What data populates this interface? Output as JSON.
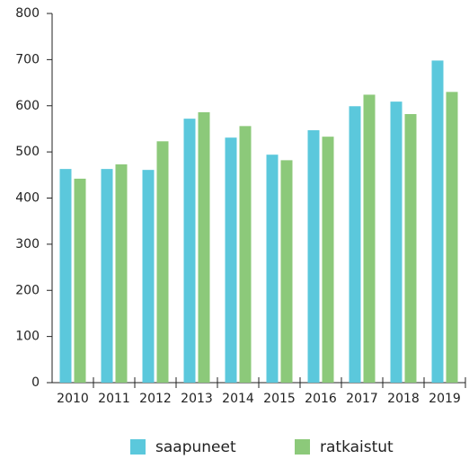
{
  "chart_data": {
    "type": "bar",
    "categories": [
      "2010",
      "2011",
      "2012",
      "2013",
      "2014",
      "2015",
      "2016",
      "2017",
      "2018",
      "2019"
    ],
    "series": [
      {
        "name": "saapuneet",
        "color": "#5bc8dc",
        "values": [
          463,
          463,
          461,
          572,
          531,
          494,
          547,
          599,
          609,
          698
        ]
      },
      {
        "name": "ratkaistut",
        "color": "#8cc97a",
        "values": [
          442,
          473,
          523,
          586,
          556,
          482,
          533,
          624,
          582,
          630
        ]
      }
    ],
    "ylim": [
      0,
      800
    ],
    "yticks": [
      0,
      100,
      200,
      300,
      400,
      500,
      600,
      700,
      800
    ],
    "grid": false,
    "legend": "bottom"
  }
}
